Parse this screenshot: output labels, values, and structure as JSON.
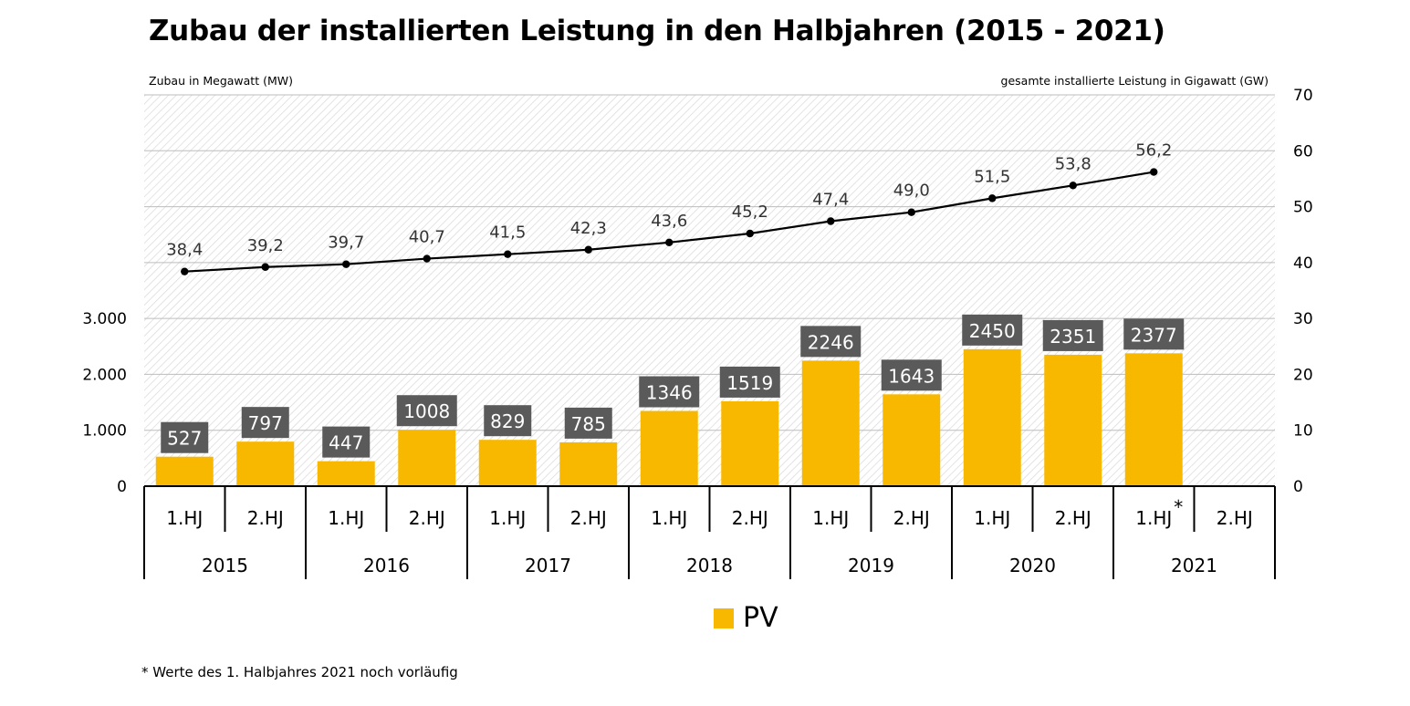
{
  "title": "Zubau der installierten Leistung in den Halbjahren (2015 - 2021)",
  "footnote": "* Werte des 1. Halbjahres 2021 noch vorläufig",
  "colors": {
    "bar": "#f9b800",
    "line": "#000000",
    "label_box": "#5a5a5a",
    "grid": "#bdbdbd"
  },
  "chart_data": {
    "type": "bar",
    "title": "Zubau der installierten Leistung in den Halbjahren (2015 - 2021)",
    "ylabel_left": "Zubau in Megawatt (MW)",
    "ylabel_right": "gesamte installierte Leistung in Gigawatt (GW)",
    "ylim_left": [
      0,
      7000
    ],
    "left_ticks": [
      "0",
      "1.000",
      "2.000",
      "3.000"
    ],
    "ylim_right": [
      0,
      70
    ],
    "right_ticks": [
      "0",
      "10",
      "20",
      "30",
      "40",
      "50",
      "60",
      "70"
    ],
    "grid": true,
    "categories": [
      "1.HJ",
      "2.HJ",
      "1.HJ",
      "2.HJ",
      "1.HJ",
      "2.HJ",
      "1.HJ",
      "2.HJ",
      "1.HJ",
      "2.HJ",
      "1.HJ",
      "2.HJ",
      "1.HJ",
      "2.HJ"
    ],
    "category_marks": [
      "",
      "",
      "",
      "",
      "",
      "",
      "",
      "",
      "",
      "",
      "",
      "",
      "*",
      ""
    ],
    "years": [
      "2015",
      "2016",
      "2017",
      "2018",
      "2019",
      "2020",
      "2021"
    ],
    "series": [
      {
        "name": "PV",
        "type": "bar",
        "axis": "left",
        "values": [
          527,
          797,
          447,
          1008,
          829,
          785,
          1346,
          1519,
          2246,
          1643,
          2450,
          2351,
          2377,
          null
        ]
      },
      {
        "type": "line",
        "axis": "right",
        "values": [
          38.4,
          39.2,
          39.7,
          40.7,
          41.5,
          42.3,
          43.6,
          45.2,
          47.4,
          49.0,
          51.5,
          53.8,
          56.2,
          null
        ],
        "labels": [
          "38,4",
          "39,2",
          "39,7",
          "40,7",
          "41,5",
          "42,3",
          "43,6",
          "45,2",
          "47,4",
          "49,0",
          "51,5",
          "53,8",
          "56,2",
          ""
        ]
      }
    ],
    "legend": {
      "position": "bottom-center",
      "entries": [
        "PV"
      ]
    }
  }
}
